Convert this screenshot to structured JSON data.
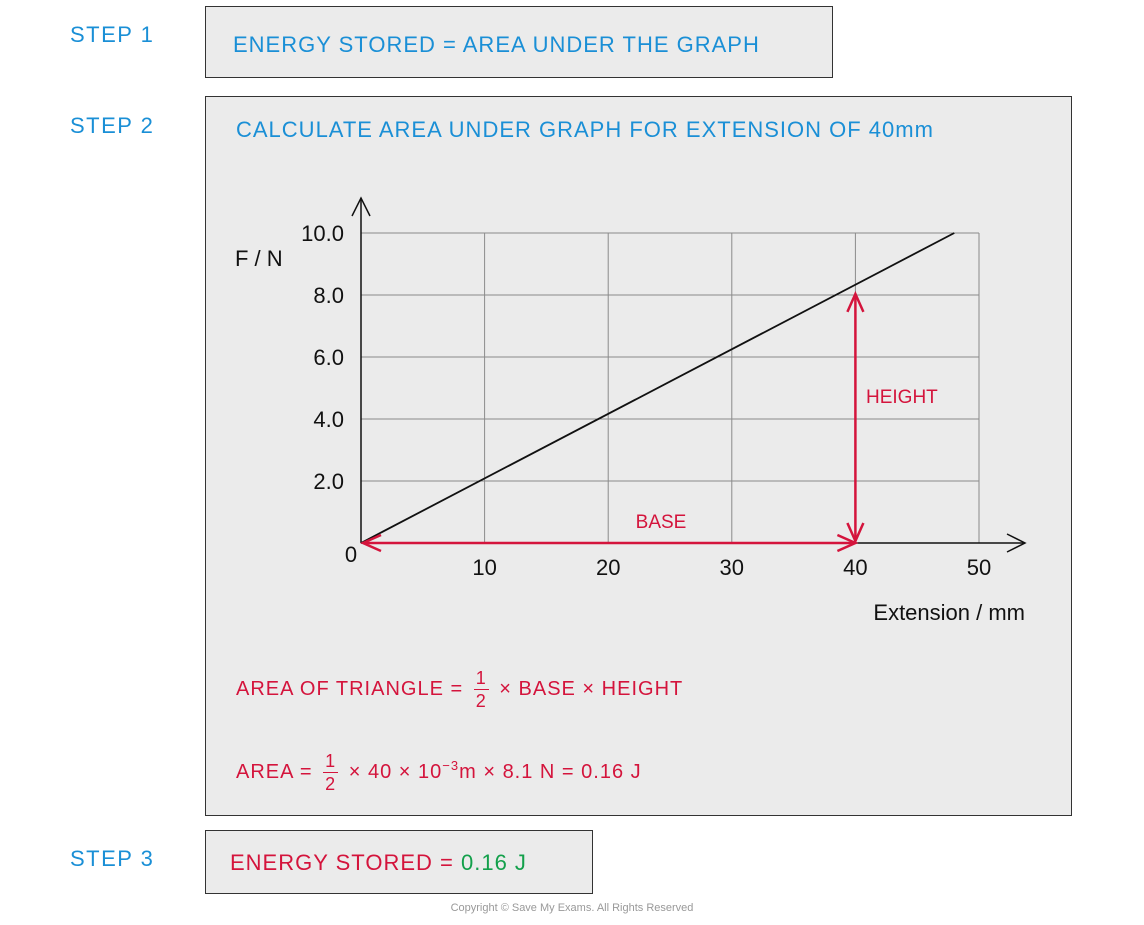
{
  "step1": {
    "label": "STEP 1",
    "text": "ENERGY STORED = AREA UNDER THE GRAPH"
  },
  "step2": {
    "label": "STEP 2",
    "heading": "CALCULATE AREA UNDER GRAPH FOR EXTENSION OF 40mm",
    "formula_label": "AREA OF TRIANGLE =",
    "formula_frac_num": "1",
    "formula_frac_den": "2",
    "formula_rest": "× BASE × HEIGHT",
    "calc_label": "AREA =",
    "calc_frac_num": "1",
    "calc_frac_den": "2",
    "calc_rest_a": "× 40 × 10",
    "calc_exp": "−3",
    "calc_rest_b": "m × 8.1 N = 0.16 J"
  },
  "step3": {
    "label": "STEP 3",
    "text_prefix": "ENERGY STORED = ",
    "text_value": "0.16 J"
  },
  "chart_data": {
    "type": "line",
    "xlabel": "Extension / mm",
    "ylabel": "F / N",
    "xlim": [
      0,
      50
    ],
    "ylim": [
      0,
      10
    ],
    "x_ticks": [
      10,
      20,
      30,
      40,
      50
    ],
    "y_ticks": [
      2.0,
      4.0,
      6.0,
      8.0,
      10.0
    ],
    "x_tick_labels": [
      "10",
      "20",
      "30",
      "40",
      "50"
    ],
    "y_tick_labels": [
      "2.0",
      "4.0",
      "6.0",
      "8.0",
      "10.0"
    ],
    "origin_label": "0",
    "grid": true,
    "series": [
      {
        "x": [
          0,
          48
        ],
        "y": [
          0,
          10
        ]
      }
    ],
    "annotations": {
      "base_label": "BASE",
      "height_label": "HEIGHT",
      "point": {
        "x": 40,
        "y": 8.1
      }
    }
  },
  "colors": {
    "blue": "#1a8fd6",
    "red": "#d4143c",
    "green": "#13a04b",
    "box_fill": "#ebebeb"
  },
  "copyright": "Copyright © Save My Exams. All Rights Reserved"
}
